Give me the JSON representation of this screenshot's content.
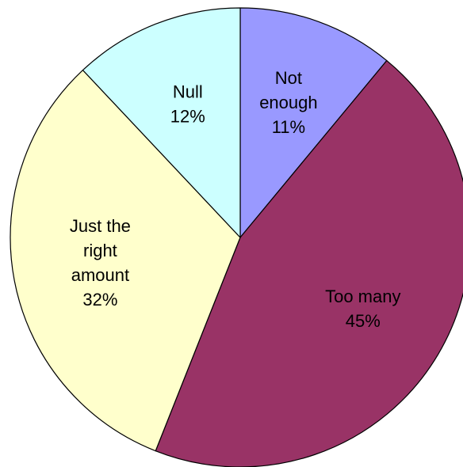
{
  "chart_data": {
    "type": "pie",
    "title": "",
    "start_angle_deg": 0,
    "direction": "clockwise",
    "slices": [
      {
        "label_lines": [
          "Not",
          "enough"
        ],
        "value_label": "11%",
        "value": 11,
        "color": "#9999ff"
      },
      {
        "label_lines": [
          "Too many"
        ],
        "value_label": "45%",
        "value": 45,
        "color": "#993366"
      },
      {
        "label_lines": [
          "Just the",
          "right",
          "amount"
        ],
        "value_label": "32%",
        "value": 32,
        "color": "#ffffcc"
      },
      {
        "label_lines": [
          "Null"
        ],
        "value_label": "12%",
        "value": 12,
        "color": "#ccffff"
      }
    ],
    "legend": "none",
    "border_color": "#000000"
  }
}
